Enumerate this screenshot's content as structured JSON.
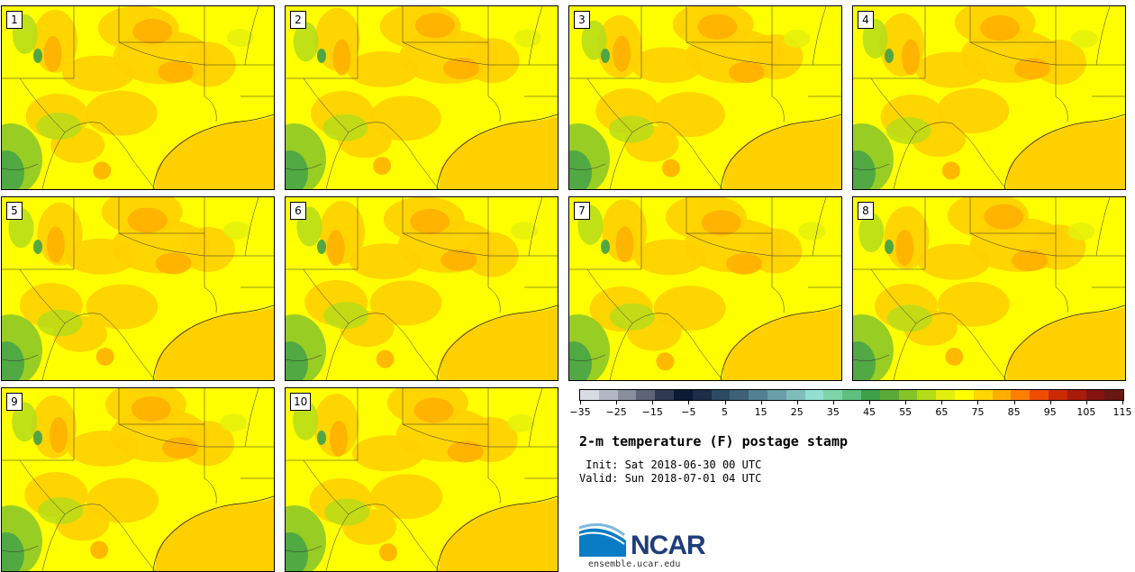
{
  "panels": [
    {
      "label": "1"
    },
    {
      "label": "2"
    },
    {
      "label": "3"
    },
    {
      "label": "4"
    },
    {
      "label": "5"
    },
    {
      "label": "6"
    },
    {
      "label": "7"
    },
    {
      "label": "8"
    },
    {
      "label": "9"
    },
    {
      "label": "10"
    }
  ],
  "colorbar": {
    "colors": [
      "#d8dbe3",
      "#b4b8c4",
      "#8a8f9e",
      "#5c6475",
      "#2e3a50",
      "#0c1a33",
      "#1c2e48",
      "#2d4a63",
      "#3e6176",
      "#548093",
      "#6a9ea8",
      "#7fbdbb",
      "#94e0d0",
      "#7fd3a8",
      "#5fc07f",
      "#3fa04a",
      "#5aaa37",
      "#86c42a",
      "#b4dc1a",
      "#e3f00d",
      "#ffff00",
      "#ffd700",
      "#ffae00",
      "#ff7f00",
      "#ee4e00",
      "#cc2b00",
      "#a81c0a",
      "#851410",
      "#6a1612"
    ],
    "tick_labels": [
      "−35",
      "−25",
      "−15",
      "−5",
      "5",
      "15",
      "25",
      "35",
      "45",
      "55",
      "65",
      "75",
      "85",
      "95",
      "105",
      "115"
    ]
  },
  "title": "2-m temperature (F) postage stamp",
  "init_line": " Init: Sat 2018-06-30 00 UTC",
  "valid_line": "Valid: Sun 2018-07-01 04 UTC",
  "logo": {
    "wordmark": "NCAR",
    "url": "ensemble.ucar.edu"
  }
}
